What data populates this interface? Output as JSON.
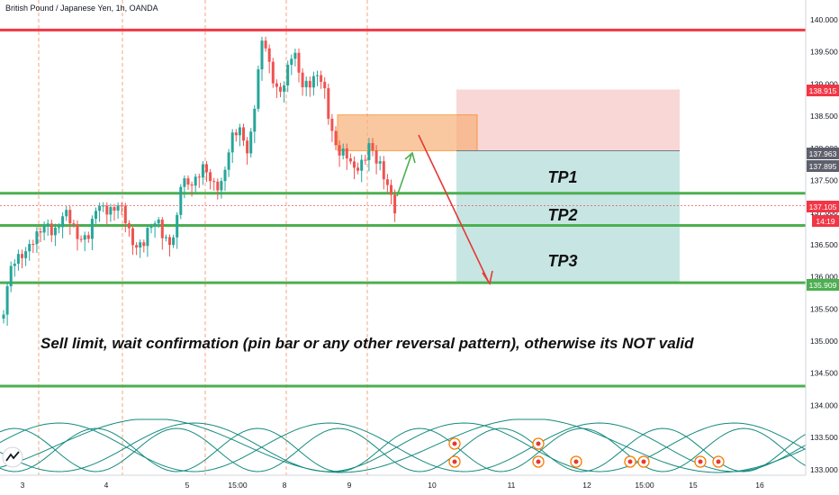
{
  "header": {
    "title": "British Pound / Japanese Yen, 1h, OANDA"
  },
  "annotations": {
    "tp1": "TP1",
    "tp2": "TP2",
    "tp3": "TP3",
    "note": "Sell limit, wait confirmation (pin bar or any other reversal pattern),  otherwise  its NOT valid"
  },
  "badges": {
    "upper": "138.915",
    "entry": "137.963",
    "entry2": "137.895",
    "current": "137.105",
    "time": "14:19",
    "lower": "135.909"
  },
  "colors": {
    "up": "#26a69a",
    "down": "#ef5350",
    "green_line": "#4caf50",
    "red_line": "#f23645",
    "stop_zone": "#f8c9c9",
    "target_zone": "#b9e0dc",
    "entry_zone": "#f7b27a",
    "cycle": "#138a7e"
  },
  "chart_data": {
    "type": "candlestick",
    "title": "British Pound / Japanese Yen, 1h, OANDA",
    "ylim": [
      132.9,
      140.2
    ],
    "y_ticks": [
      "140.000",
      "139.500",
      "139.000",
      "138.500",
      "138.000",
      "137.500",
      "137.000",
      "136.500",
      "136.000",
      "135.500",
      "135.000",
      "134.500",
      "134.000",
      "133.500",
      "133.000"
    ],
    "x_ticks": [
      "3",
      "4",
      "5",
      "15:00",
      "8",
      "9",
      "10",
      "11",
      "12",
      "15:00",
      "15",
      "16"
    ],
    "horizontal_levels": [
      {
        "price": 139.84,
        "color": "red"
      },
      {
        "price": 137.3,
        "color": "green"
      },
      {
        "price": 136.8,
        "color": "green"
      },
      {
        "price": 135.909,
        "color": "green"
      },
      {
        "price": 134.3,
        "color": "green"
      }
    ],
    "positions": {
      "stop_zone": [
        137.963,
        138.915
      ],
      "target_zone": [
        135.909,
        137.963
      ],
      "entry_zone": [
        137.963,
        138.52
      ],
      "labels": [
        "TP1",
        "TP2",
        "TP3"
      ]
    },
    "candles_summary": {
      "start_price": 135.4,
      "high": 139.75,
      "last": 137.105,
      "volatility_note": "hourly series from day 3 to day 9"
    }
  }
}
